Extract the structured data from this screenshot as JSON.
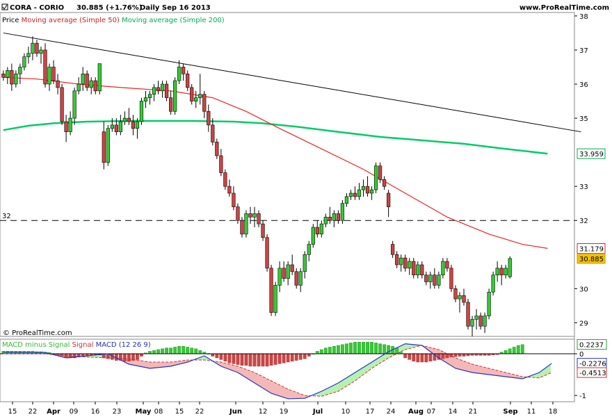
{
  "header": {
    "symbol": "CORA - CORIO",
    "last": "30.885 (+1.76%)",
    "period": "Daily  Sep 16 2013",
    "site": "www.ProRealTime.com"
  },
  "legend": {
    "price": "Price",
    "ma50": "Moving average (Simple 50)",
    "ma200": "Moving average (Simple 200)"
  },
  "copyright": "© ProRealTime.com",
  "macd_legend": {
    "hist": "MACD minus Signal",
    "signal": "Signal",
    "macd": "MACD (12 26 9)"
  },
  "colors": {
    "up": "#33cc33",
    "down": "#cc4444",
    "ma50": "#ee2222",
    "ma200": "#00cc66",
    "trend": "#000000",
    "macd": "#2233cc",
    "signal": "#cc3333"
  },
  "chart_data": [
    {
      "type": "candlestick",
      "y_ticks": [
        "38",
        "37",
        "36",
        "35",
        "33",
        "32",
        "30",
        "29"
      ],
      "ylim": [
        28.6,
        38.1
      ],
      "x_tick_labels": [
        "15",
        "22",
        "Apr",
        "09",
        "16",
        "23",
        "May",
        "08",
        "15",
        "22",
        "Jun",
        "12",
        "19",
        "Jul",
        "10",
        "17",
        "24",
        "Aug",
        "07",
        "14",
        "21",
        "Sep",
        "11",
        "18"
      ],
      "horizontal_line": {
        "value": 32,
        "label": "32"
      },
      "value_badges": [
        {
          "label": "33.959",
          "value": 33.959,
          "series": "ma200"
        },
        {
          "label": "31.179",
          "value": 31.179,
          "series": "ma50"
        },
        {
          "label": "30.885",
          "value": 30.885,
          "series": "price"
        }
      ],
      "trendline": {
        "from": [
          0,
          37.5
        ],
        "to": [
          138,
          34.6
        ]
      },
      "candles": [
        [
          36.3,
          36.4,
          36.1,
          36.2
        ],
        [
          36.2,
          36.5,
          36.0,
          36.4
        ],
        [
          36.4,
          36.6,
          35.8,
          36.0
        ],
        [
          36.0,
          36.4,
          35.9,
          36.3
        ],
        [
          36.3,
          36.6,
          36.0,
          36.5
        ],
        [
          36.5,
          36.9,
          36.4,
          36.8
        ],
        [
          36.8,
          37.1,
          36.6,
          36.9
        ],
        [
          36.9,
          37.4,
          36.7,
          37.2
        ],
        [
          37.2,
          37.3,
          36.8,
          36.9
        ],
        [
          36.9,
          37.1,
          36.6,
          37.0
        ],
        [
          37.0,
          37.2,
          35.9,
          36.0
        ],
        [
          36.0,
          36.6,
          35.8,
          36.5
        ],
        [
          36.5,
          36.7,
          36.0,
          36.1
        ],
        [
          36.1,
          36.3,
          35.7,
          35.9
        ],
        [
          35.9,
          36.0,
          34.8,
          34.9
        ],
        [
          34.9,
          35.1,
          34.3,
          34.6
        ],
        [
          34.6,
          35.2,
          34.5,
          35.0
        ],
        [
          35.0,
          35.9,
          34.8,
          35.8
        ],
        [
          35.8,
          36.2,
          35.7,
          36.0
        ],
        [
          36.0,
          36.5,
          35.8,
          36.3
        ],
        [
          36.3,
          36.4,
          35.8,
          35.9
        ],
        [
          35.9,
          36.2,
          35.7,
          36.1
        ],
        [
          36.1,
          36.2,
          35.7,
          35.8
        ],
        [
          35.8,
          36.6,
          35.7,
          36.6
        ],
        [
          34.6,
          34.9,
          33.5,
          33.7
        ],
        [
          33.7,
          34.8,
          33.6,
          34.7
        ],
        [
          34.7,
          35.0,
          34.6,
          34.8
        ],
        [
          34.8,
          35.0,
          34.5,
          34.6
        ],
        [
          34.6,
          35.1,
          34.5,
          34.9
        ],
        [
          34.9,
          35.2,
          34.8,
          35.0
        ],
        [
          35.0,
          35.3,
          34.8,
          34.9
        ],
        [
          34.9,
          35.1,
          34.5,
          34.7
        ],
        [
          34.7,
          35.0,
          34.4,
          34.9
        ],
        [
          34.9,
          35.6,
          34.8,
          35.5
        ],
        [
          35.5,
          35.8,
          35.3,
          35.6
        ],
        [
          35.6,
          35.8,
          35.4,
          35.7
        ],
        [
          35.7,
          36.0,
          35.5,
          35.9
        ],
        [
          35.9,
          36.1,
          35.7,
          35.8
        ],
        [
          35.8,
          36.1,
          35.6,
          36.0
        ],
        [
          36.0,
          36.1,
          35.5,
          35.6
        ],
        [
          35.6,
          35.8,
          35.1,
          35.2
        ],
        [
          35.2,
          36.2,
          35.1,
          36.1
        ],
        [
          36.1,
          36.7,
          36.0,
          36.5
        ],
        [
          36.5,
          36.6,
          36.1,
          36.3
        ],
        [
          36.3,
          36.4,
          35.8,
          35.9
        ],
        [
          35.9,
          36.0,
          35.4,
          35.5
        ],
        [
          35.5,
          35.8,
          35.3,
          35.6
        ],
        [
          35.6,
          36.3,
          35.4,
          35.7
        ],
        [
          35.7,
          35.8,
          35.0,
          35.2
        ],
        [
          35.2,
          35.4,
          34.6,
          34.8
        ],
        [
          34.8,
          35.0,
          34.2,
          34.3
        ],
        [
          34.3,
          34.4,
          33.8,
          33.9
        ],
        [
          33.9,
          34.1,
          33.3,
          33.4
        ],
        [
          33.4,
          33.5,
          32.9,
          33.0
        ],
        [
          33.0,
          33.2,
          32.7,
          32.8
        ],
        [
          32.8,
          33.0,
          32.3,
          32.4
        ],
        [
          32.4,
          32.5,
          31.9,
          32.0
        ],
        [
          32.0,
          32.1,
          31.5,
          31.6
        ],
        [
          31.6,
          32.3,
          31.5,
          32.2
        ],
        [
          32.2,
          32.4,
          31.9,
          32.1
        ],
        [
          32.1,
          32.4,
          31.8,
          32.2
        ],
        [
          32.2,
          32.3,
          31.8,
          31.9
        ],
        [
          31.9,
          32.0,
          31.4,
          31.5
        ],
        [
          31.5,
          31.6,
          30.5,
          30.6
        ],
        [
          30.6,
          30.7,
          29.2,
          29.3
        ],
        [
          29.3,
          30.2,
          29.2,
          30.1
        ],
        [
          30.1,
          30.8,
          29.9,
          30.6
        ],
        [
          30.6,
          30.8,
          30.2,
          30.3
        ],
        [
          30.3,
          30.8,
          30.1,
          30.7
        ],
        [
          30.7,
          31.0,
          30.4,
          30.5
        ],
        [
          30.5,
          30.6,
          30.0,
          30.1
        ],
        [
          30.1,
          30.6,
          29.9,
          30.5
        ],
        [
          30.5,
          31.1,
          30.3,
          31.0
        ],
        [
          31.0,
          31.4,
          30.8,
          31.3
        ],
        [
          31.3,
          31.9,
          31.2,
          31.8
        ],
        [
          31.8,
          32.0,
          31.5,
          31.6
        ],
        [
          31.6,
          32.0,
          31.5,
          31.9
        ],
        [
          31.9,
          32.2,
          31.8,
          32.1
        ],
        [
          32.1,
          32.4,
          31.9,
          32.0
        ],
        [
          32.0,
          32.3,
          31.8,
          32.2
        ],
        [
          32.2,
          32.3,
          31.9,
          32.0
        ],
        [
          32.0,
          32.6,
          31.9,
          32.5
        ],
        [
          32.5,
          32.8,
          32.4,
          32.7
        ],
        [
          32.7,
          32.9,
          32.6,
          32.8
        ],
        [
          32.8,
          33.0,
          32.6,
          32.7
        ],
        [
          32.7,
          33.1,
          32.6,
          32.9
        ],
        [
          32.9,
          33.2,
          32.7,
          33.0
        ],
        [
          33.0,
          33.3,
          32.7,
          32.8
        ],
        [
          32.8,
          33.0,
          32.6,
          32.9
        ],
        [
          32.9,
          33.7,
          32.8,
          33.6
        ],
        [
          33.6,
          33.7,
          33.1,
          33.2
        ],
        [
          33.2,
          33.3,
          32.9,
          33.0
        ],
        [
          32.8,
          32.9,
          32.1,
          32.4
        ],
        [
          31.3,
          31.4,
          30.9,
          31.0
        ],
        [
          31.0,
          31.1,
          30.6,
          30.7
        ],
        [
          30.7,
          31.0,
          30.5,
          30.9
        ],
        [
          30.9,
          31.0,
          30.5,
          30.6
        ],
        [
          30.6,
          30.9,
          30.4,
          30.8
        ],
        [
          30.8,
          30.9,
          30.3,
          30.4
        ],
        [
          30.4,
          30.8,
          30.3,
          30.7
        ],
        [
          30.7,
          30.8,
          30.3,
          30.4
        ],
        [
          30.4,
          30.5,
          30.1,
          30.2
        ],
        [
          30.2,
          30.5,
          30.0,
          30.4
        ],
        [
          30.4,
          30.6,
          30.0,
          30.1
        ],
        [
          30.1,
          30.5,
          30.0,
          30.4
        ],
        [
          30.4,
          30.9,
          30.3,
          30.8
        ],
        [
          30.8,
          30.9,
          30.5,
          30.6
        ],
        [
          30.6,
          30.7,
          29.9,
          30.0
        ],
        [
          30.0,
          30.1,
          29.6,
          29.7
        ],
        [
          29.7,
          29.9,
          29.3,
          29.8
        ],
        [
          29.8,
          30.0,
          29.5,
          29.6
        ],
        [
          29.6,
          29.7,
          28.8,
          28.9
        ],
        [
          28.9,
          29.2,
          28.6,
          29.1
        ],
        [
          29.1,
          29.4,
          28.8,
          29.2
        ],
        [
          29.2,
          29.3,
          28.8,
          28.9
        ],
        [
          28.9,
          29.3,
          28.7,
          29.2
        ],
        [
          29.2,
          30.0,
          29.1,
          29.9
        ],
        [
          29.9,
          30.5,
          29.8,
          30.4
        ],
        [
          30.4,
          30.8,
          30.2,
          30.6
        ],
        [
          30.6,
          30.7,
          30.1,
          30.4
        ],
        [
          30.4,
          30.7,
          30.3,
          30.6
        ],
        [
          30.35,
          30.95,
          30.3,
          30.885
        ]
      ],
      "ma50": [
        [
          0,
          36.2
        ],
        [
          8,
          36.15
        ],
        [
          18,
          36.0
        ],
        [
          28,
          35.9
        ],
        [
          40,
          35.8
        ],
        [
          50,
          35.6
        ],
        [
          58,
          35.2
        ],
        [
          66,
          34.7
        ],
        [
          76,
          34.1
        ],
        [
          86,
          33.5
        ],
        [
          96,
          32.8
        ],
        [
          106,
          32.1
        ],
        [
          116,
          31.6
        ],
        [
          124,
          31.3
        ],
        [
          130,
          31.18
        ]
      ],
      "ma200": [
        [
          0,
          34.65
        ],
        [
          6,
          34.78
        ],
        [
          12,
          34.85
        ],
        [
          20,
          34.9
        ],
        [
          30,
          34.92
        ],
        [
          45,
          34.92
        ],
        [
          55,
          34.9
        ],
        [
          62,
          34.85
        ],
        [
          70,
          34.75
        ],
        [
          80,
          34.6
        ],
        [
          90,
          34.45
        ],
        [
          100,
          34.35
        ],
        [
          110,
          34.25
        ],
        [
          120,
          34.1
        ],
        [
          130,
          33.96
        ]
      ]
    },
    {
      "type": "bar",
      "title": "MACD (12 26 9)",
      "y_ticks": [
        "0",
        "-1"
      ],
      "ylim": [
        -1.15,
        0.35
      ],
      "value_badges": [
        {
          "label": "0.2237",
          "value": 0.2237,
          "series": "hist"
        },
        {
          "label": "-0.2276",
          "value": -0.2276,
          "series": "macd"
        },
        {
          "label": "-0.4513",
          "value": -0.4513,
          "series": "signal"
        }
      ],
      "hist": [
        0.06,
        0.06,
        0.06,
        0.06,
        0.06,
        0.06,
        0.06,
        0.06,
        0.05,
        0.05,
        0.04,
        0.03,
        0.0,
        -0.02,
        -0.05,
        -0.08,
        -0.1,
        -0.1,
        -0.08,
        -0.06,
        -0.05,
        -0.04,
        -0.03,
        -0.03,
        -0.1,
        -0.12,
        -0.14,
        -0.16,
        -0.16,
        -0.18,
        -0.18,
        -0.16,
        -0.14,
        -0.06,
        0.02,
        0.06,
        0.08,
        0.1,
        0.12,
        0.14,
        0.14,
        0.16,
        0.18,
        0.18,
        0.16,
        0.14,
        0.12,
        0.08,
        0.04,
        0.0,
        -0.06,
        -0.1,
        -0.14,
        -0.18,
        -0.22,
        -0.24,
        -0.26,
        -0.28,
        -0.28,
        -0.3,
        -0.3,
        -0.3,
        -0.3,
        -0.3,
        -0.28,
        -0.26,
        -0.24,
        -0.22,
        -0.2,
        -0.18,
        -0.16,
        -0.14,
        -0.12,
        -0.06,
        0.0,
        0.06,
        0.1,
        0.14,
        0.16,
        0.18,
        0.2,
        0.22,
        0.24,
        0.26,
        0.28,
        0.28,
        0.28,
        0.28,
        0.28,
        0.26,
        0.24,
        0.22,
        0.2,
        0.18,
        0.14,
        0.04,
        -0.1,
        -0.14,
        -0.18,
        -0.2,
        -0.2,
        -0.2,
        -0.18,
        -0.16,
        -0.14,
        -0.12,
        -0.1,
        -0.08,
        -0.07,
        -0.06,
        -0.06,
        -0.05,
        -0.04,
        -0.04,
        -0.04,
        -0.04,
        -0.04,
        -0.03,
        -0.02,
        0.04,
        0.08,
        0.12,
        0.16,
        0.2,
        0.22
      ],
      "macd": [
        [
          0,
          0.04
        ],
        [
          10,
          0.03
        ],
        [
          15,
          -0.1
        ],
        [
          20,
          -0.05
        ],
        [
          25,
          0.0
        ],
        [
          30,
          -0.25
        ],
        [
          35,
          -0.35
        ],
        [
          40,
          -0.3
        ],
        [
          44,
          -0.2
        ],
        [
          48,
          -0.05
        ],
        [
          52,
          -0.3
        ],
        [
          56,
          -0.45
        ],
        [
          60,
          -0.7
        ],
        [
          64,
          -0.95
        ],
        [
          68,
          -1.08
        ],
        [
          72,
          -1.07
        ],
        [
          76,
          -0.9
        ],
        [
          80,
          -0.7
        ],
        [
          84,
          -0.45
        ],
        [
          88,
          -0.2
        ],
        [
          92,
          0.05
        ],
        [
          96,
          0.24
        ],
        [
          100,
          0.2
        ],
        [
          104,
          -0.1
        ],
        [
          108,
          -0.35
        ],
        [
          112,
          -0.45
        ],
        [
          116,
          -0.5
        ],
        [
          120,
          -0.55
        ],
        [
          124,
          -0.6
        ],
        [
          128,
          -0.45
        ],
        [
          131,
          -0.23
        ]
      ],
      "signal": [
        [
          0,
          0.0
        ],
        [
          10,
          0.0
        ],
        [
          15,
          -0.05
        ],
        [
          20,
          -0.08
        ],
        [
          25,
          -0.1
        ],
        [
          30,
          -0.12
        ],
        [
          35,
          -0.2
        ],
        [
          40,
          -0.2
        ],
        [
          44,
          -0.15
        ],
        [
          48,
          -0.15
        ],
        [
          52,
          -0.2
        ],
        [
          56,
          -0.3
        ],
        [
          60,
          -0.45
        ],
        [
          64,
          -0.65
        ],
        [
          68,
          -0.85
        ],
        [
          72,
          -1.0
        ],
        [
          76,
          -1.02
        ],
        [
          80,
          -0.9
        ],
        [
          84,
          -0.65
        ],
        [
          88,
          -0.35
        ],
        [
          92,
          -0.1
        ],
        [
          96,
          0.1
        ],
        [
          100,
          0.2
        ],
        [
          104,
          0.1
        ],
        [
          108,
          -0.1
        ],
        [
          112,
          -0.25
        ],
        [
          116,
          -0.35
        ],
        [
          120,
          -0.45
        ],
        [
          124,
          -0.55
        ],
        [
          128,
          -0.58
        ],
        [
          131,
          -0.45
        ]
      ]
    }
  ]
}
